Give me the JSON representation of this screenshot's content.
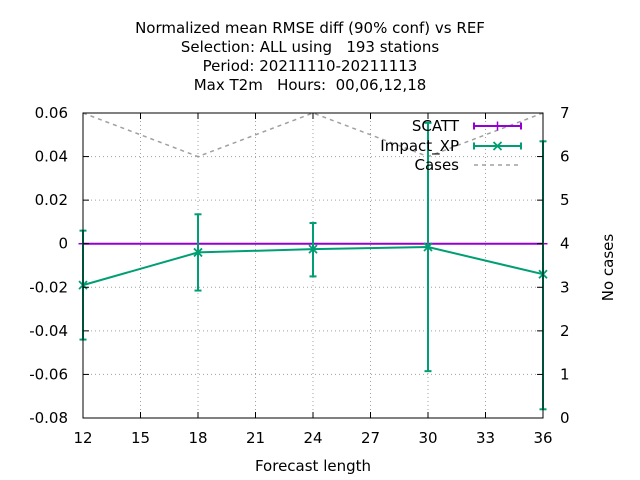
{
  "chart_data": {
    "type": "line",
    "title_lines": [
      "Normalized mean RMSE diff (90% conf) vs REF",
      "Selection: ALL using   193 stations",
      "Period: 20211110-20211113",
      "Max T2m   Hours:  00,06,12,18"
    ],
    "xlabel": "Forecast length",
    "ylabel": "",
    "y2label": "No cases",
    "xlim": [
      12,
      36
    ],
    "ylim": [
      -0.08,
      0.06
    ],
    "y2lim": [
      0,
      7
    ],
    "xticks": [
      12,
      15,
      18,
      21,
      24,
      27,
      30,
      33,
      36
    ],
    "xtick_labels": [
      "12",
      "15",
      "18",
      "21",
      "24",
      "27",
      "30",
      "33",
      "36"
    ],
    "yticks": [
      -0.08,
      -0.06,
      -0.04,
      -0.02,
      0,
      0.02,
      0.04,
      0.06
    ],
    "ytick_labels": [
      "-0.08",
      "-0.06",
      "-0.04",
      "-0.02",
      "0",
      "0.02",
      "0.04",
      "0.06"
    ],
    "y2ticks": [
      0,
      1,
      2,
      3,
      4,
      5,
      6,
      7
    ],
    "y2tick_labels": [
      "0",
      "1",
      "2",
      "3",
      "4",
      "5",
      "6",
      "7"
    ],
    "grid": true,
    "legend_position": "top-right",
    "series": [
      {
        "name": "SCATT",
        "color": "#9400d3",
        "marker": "plus",
        "axis": "y1",
        "x": [
          12,
          18,
          24,
          30,
          36
        ],
        "y": [
          0,
          0,
          0,
          0,
          0
        ],
        "err_low": [
          0,
          0,
          0,
          0,
          0
        ],
        "err_high": [
          0,
          0,
          0,
          0,
          0
        ]
      },
      {
        "name": "Impact_XP",
        "color": "#009e73",
        "marker": "cross",
        "axis": "y1",
        "x": [
          12,
          18,
          24,
          30,
          36
        ],
        "y": [
          -0.019,
          -0.004,
          -0.0025,
          -0.0015,
          -0.014
        ],
        "err_low": [
          -0.044,
          -0.0215,
          -0.015,
          -0.0585,
          -0.076
        ],
        "err_high": [
          0.006,
          0.0135,
          0.0095,
          0.0555,
          0.047
        ]
      },
      {
        "name": "Cases",
        "color": "#a0a0a0",
        "marker": "none",
        "dashed": true,
        "axis": "y2",
        "x": [
          12,
          18,
          24,
          30,
          36
        ],
        "y": [
          7,
          6,
          7,
          6,
          7
        ]
      }
    ]
  }
}
